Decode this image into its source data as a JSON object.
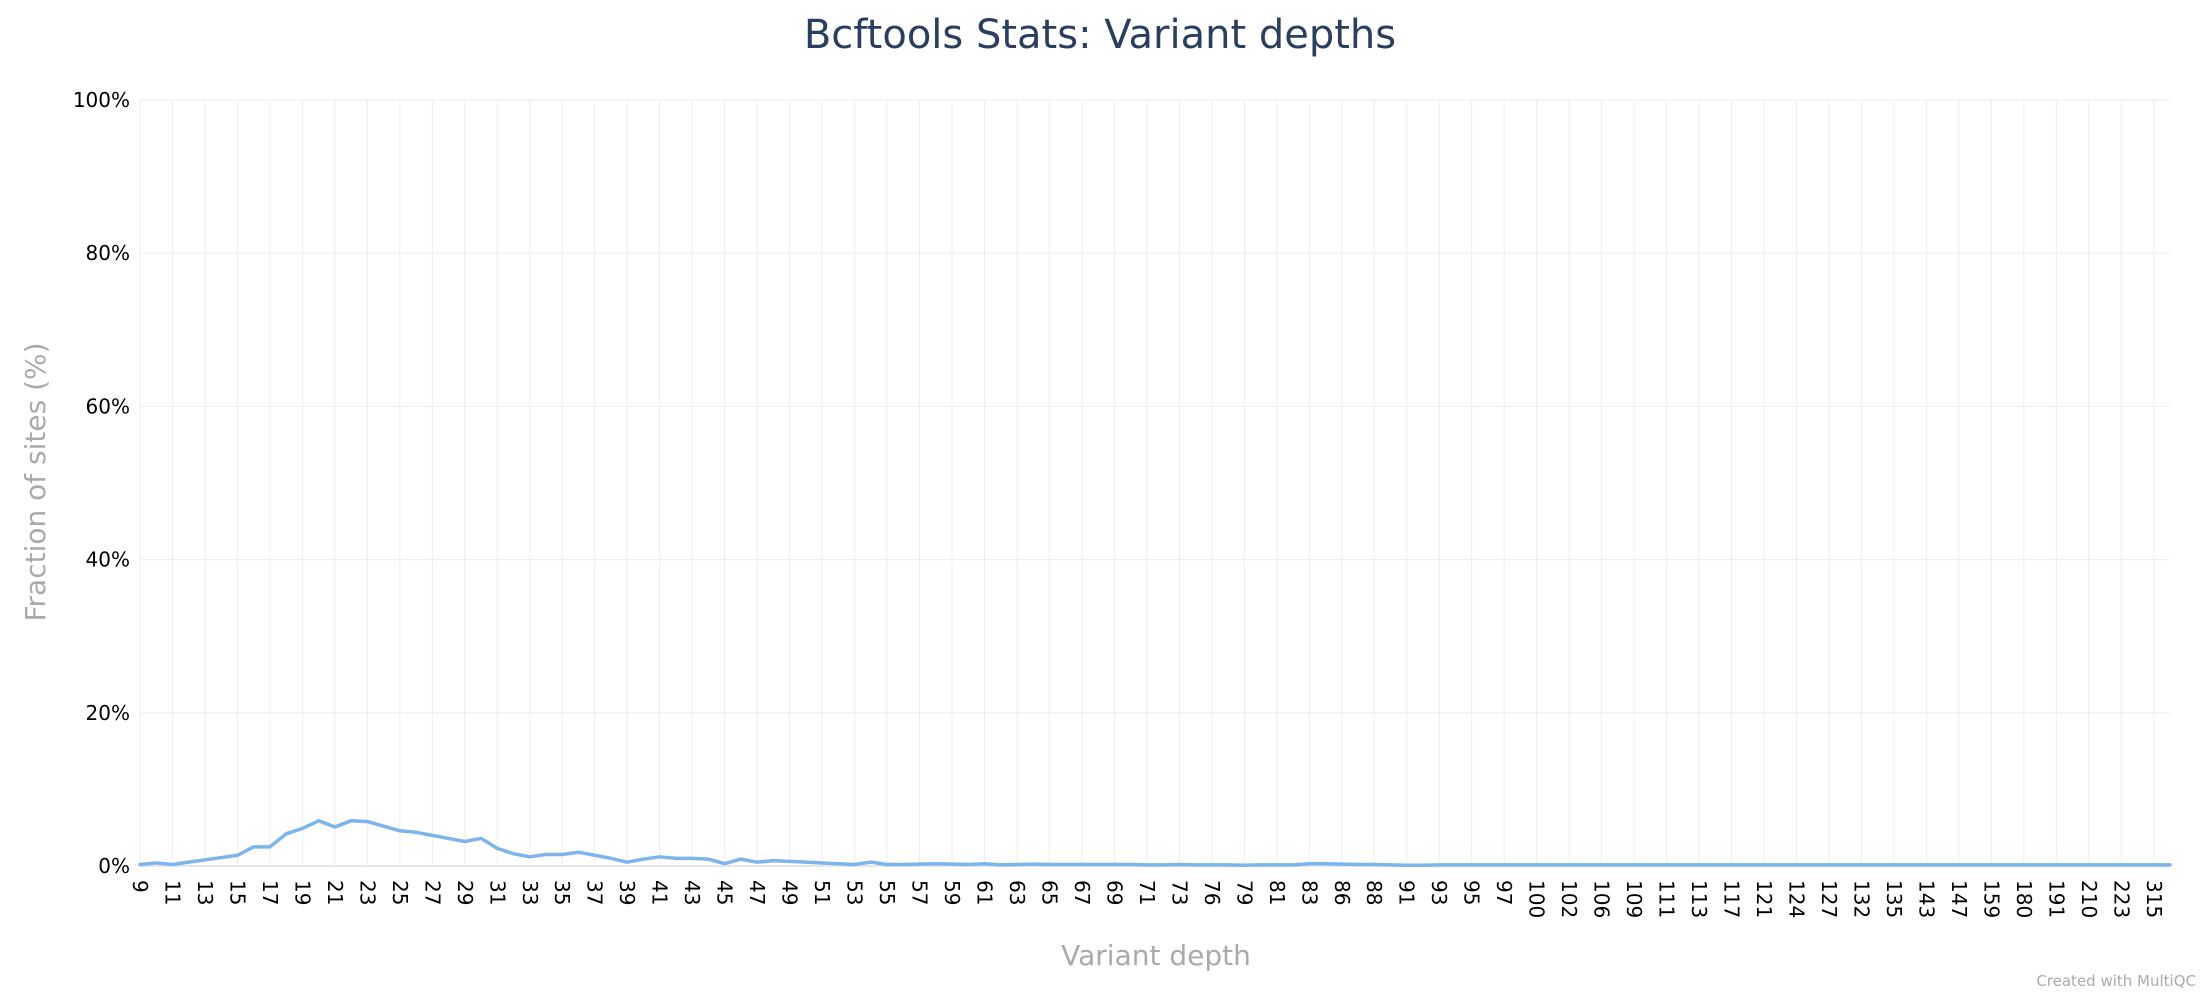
{
  "chart_data": {
    "type": "line",
    "title": "Bcftools Stats: Variant depths",
    "xlabel": "Variant depth",
    "ylabel": "Fraction of sites (%)",
    "ylim": [
      0,
      100
    ],
    "yticks": [
      "0%",
      "20%",
      "40%",
      "60%",
      "80%",
      "100%"
    ],
    "yticks_values": [
      0,
      20,
      40,
      60,
      80,
      100
    ],
    "grid": true,
    "x": [
      "9",
      "10",
      "11",
      "12",
      "13",
      "14",
      "15",
      "16",
      "17",
      "18",
      "19",
      "20",
      "21",
      "22",
      "23",
      "24",
      "25",
      "26",
      "27",
      "28",
      "29",
      "30",
      "31",
      "32",
      "33",
      "34",
      "35",
      "36",
      "37",
      "38",
      "39",
      "40",
      "41",
      "42",
      "43",
      "44",
      "45",
      "46",
      "47",
      "48",
      "49",
      "50",
      "51",
      "52",
      "53",
      "54",
      "55",
      "56",
      "57",
      "58",
      "59",
      "60",
      "61",
      "62",
      "63",
      "64",
      "65",
      "66",
      "67",
      "68",
      "69",
      "70",
      "71",
      "72",
      "73",
      "74",
      "76",
      "77",
      "79",
      "80",
      "81",
      "82",
      "83",
      "84",
      "86",
      "87",
      "88",
      "90",
      "91",
      "92",
      "93",
      "94",
      "95",
      "96",
      "97",
      "98",
      "100",
      "101",
      "102",
      "104",
      "106",
      "108",
      "109",
      "110",
      "111",
      "112",
      "113",
      "115",
      "117",
      "119",
      "121",
      "122",
      "124",
      "126",
      "127",
      "130",
      "132",
      "134",
      "135",
      "140",
      "143",
      "145",
      "147",
      "150",
      "159",
      "170",
      "180",
      "185",
      "191",
      "200",
      "210",
      "215",
      "223",
      "250",
      "315",
      "400"
    ],
    "xtick_labels": [
      "9",
      "11",
      "13",
      "15",
      "17",
      "19",
      "21",
      "23",
      "25",
      "27",
      "29",
      "31",
      "33",
      "35",
      "37",
      "39",
      "41",
      "43",
      "45",
      "47",
      "49",
      "51",
      "53",
      "55",
      "57",
      "59",
      "61",
      "63",
      "65",
      "67",
      "69",
      "71",
      "73",
      "76",
      "79",
      "81",
      "83",
      "86",
      "88",
      "91",
      "93",
      "95",
      "97",
      "100",
      "102",
      "106",
      "109",
      "111",
      "113",
      "117",
      "121",
      "124",
      "127",
      "132",
      "135",
      "143",
      "147",
      "159",
      "180",
      "191",
      "210",
      "223",
      "315"
    ],
    "series": [
      {
        "color": "#7cb5ec",
        "values": [
          0.2,
          0.4,
          0.2,
          0.5,
          0.8,
          1.1,
          1.4,
          2.5,
          2.5,
          4.2,
          4.9,
          5.9,
          5.1,
          5.9,
          5.8,
          5.2,
          4.6,
          4.4,
          4.0,
          3.6,
          3.2,
          3.6,
          2.3,
          1.6,
          1.2,
          1.5,
          1.5,
          1.8,
          1.4,
          1.0,
          0.5,
          0.9,
          1.2,
          1.0,
          1.0,
          0.9,
          0.3,
          0.9,
          0.5,
          0.7,
          0.6,
          0.5,
          0.4,
          0.3,
          0.2,
          0.5,
          0.2,
          0.2,
          0.25,
          0.3,
          0.25,
          0.2,
          0.3,
          0.15,
          0.2,
          0.25,
          0.2,
          0.2,
          0.2,
          0.2,
          0.2,
          0.2,
          0.15,
          0.15,
          0.2,
          0.15,
          0.15,
          0.15,
          0.1,
          0.15,
          0.15,
          0.15,
          0.3,
          0.3,
          0.25,
          0.2,
          0.2,
          0.15,
          0.1,
          0.1,
          0.15,
          0.15,
          0.15,
          0.15,
          0.15,
          0.15,
          0.15,
          0.15,
          0.15,
          0.15,
          0.15,
          0.15,
          0.15,
          0.15,
          0.15,
          0.15,
          0.15,
          0.15,
          0.15,
          0.15,
          0.15,
          0.15,
          0.15,
          0.15,
          0.15,
          0.15,
          0.15,
          0.15,
          0.15,
          0.15,
          0.15,
          0.15,
          0.15,
          0.15,
          0.15,
          0.15,
          0.15,
          0.15,
          0.15,
          0.15,
          0.15,
          0.15,
          0.15,
          0.15,
          0.15,
          0.15
        ]
      }
    ]
  },
  "footer": {
    "credit": "Created with MultiQC"
  }
}
